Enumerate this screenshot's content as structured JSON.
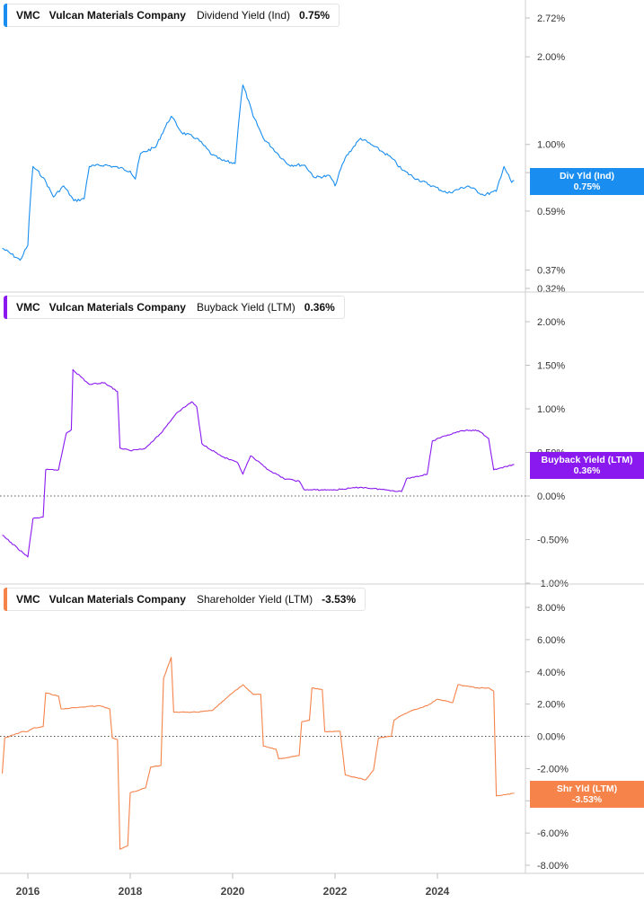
{
  "x_axis": {
    "labels": [
      "2016",
      "2018",
      "2020",
      "2022",
      "2024"
    ],
    "years": [
      2016,
      2018,
      2020,
      2022,
      2024
    ],
    "range": [
      2015.5,
      2025.5
    ]
  },
  "panels": [
    {
      "id": "dividend",
      "color": "#1a8ef0",
      "legend": {
        "ticker": "VMC",
        "company": "Vulcan Materials Company",
        "metric": "Dividend Yield (Ind)",
        "value": "0.75%"
      },
      "flag": {
        "label": "Div Yld (Ind)",
        "value": "0.75%"
      }
    },
    {
      "id": "buyback",
      "color": "#8a19f0",
      "legend": {
        "ticker": "VMC",
        "company": "Vulcan Materials Company",
        "metric": "Buyback Yield (LTM)",
        "value": "0.36%"
      },
      "flag": {
        "label": "Buyback Yield (LTM)",
        "value": "0.36%"
      }
    },
    {
      "id": "shareholder",
      "color": "#f5834a",
      "legend": {
        "ticker": "VMC",
        "company": "Vulcan Materials Company",
        "metric": "Shareholder Yield (LTM)",
        "value": "-3.53%"
      },
      "flag": {
        "label": "Shr Yld (LTM)",
        "value": "-3.53%"
      }
    }
  ],
  "chart_data": [
    {
      "type": "line",
      "scale": "log",
      "series": [
        {
          "name": "Dividend Yield (Ind)",
          "color": "#1a8ef0"
        }
      ],
      "yticks": [
        "2.72%",
        "2.00%",
        "1.00%",
        "0.80%",
        "0.59%",
        "0.37%",
        "0.32%"
      ],
      "ytick_values": [
        2.72,
        2.0,
        1.0,
        0.8,
        0.59,
        0.37,
        0.32
      ],
      "ylim": [
        0.32,
        2.72
      ],
      "points": [
        [
          2015.5,
          0.44
        ],
        [
          2015.85,
          0.4
        ],
        [
          2016.0,
          0.45
        ],
        [
          2016.1,
          0.84
        ],
        [
          2016.3,
          0.77
        ],
        [
          2016.5,
          0.66
        ],
        [
          2016.7,
          0.72
        ],
        [
          2016.9,
          0.64
        ],
        [
          2017.1,
          0.65
        ],
        [
          2017.2,
          0.84
        ],
        [
          2017.5,
          0.85
        ],
        [
          2017.8,
          0.83
        ],
        [
          2018.0,
          0.81
        ],
        [
          2018.1,
          0.76
        ],
        [
          2018.2,
          0.93
        ],
        [
          2018.5,
          0.98
        ],
        [
          2018.8,
          1.25
        ],
        [
          2019.0,
          1.1
        ],
        [
          2019.3,
          1.05
        ],
        [
          2019.6,
          0.92
        ],
        [
          2019.8,
          0.88
        ],
        [
          2020.05,
          0.86
        ],
        [
          2020.2,
          1.6
        ],
        [
          2020.4,
          1.25
        ],
        [
          2020.6,
          1.05
        ],
        [
          2020.9,
          0.92
        ],
        [
          2021.1,
          0.85
        ],
        [
          2021.4,
          0.85
        ],
        [
          2021.6,
          0.77
        ],
        [
          2021.9,
          0.78
        ],
        [
          2022.0,
          0.72
        ],
        [
          2022.2,
          0.9
        ],
        [
          2022.5,
          1.05
        ],
        [
          2022.7,
          1.0
        ],
        [
          2022.9,
          0.95
        ],
        [
          2023.1,
          0.9
        ],
        [
          2023.3,
          0.82
        ],
        [
          2023.6,
          0.76
        ],
        [
          2023.9,
          0.72
        ],
        [
          2024.2,
          0.68
        ],
        [
          2024.6,
          0.72
        ],
        [
          2024.9,
          0.67
        ],
        [
          2025.15,
          0.69
        ],
        [
          2025.3,
          0.84
        ],
        [
          2025.45,
          0.74
        ],
        [
          2025.5,
          0.75
        ]
      ]
    },
    {
      "type": "line",
      "series": [
        {
          "name": "Buyback Yield (LTM)",
          "color": "#8a19f0"
        }
      ],
      "yticks": [
        "2.00%",
        "1.50%",
        "1.00%",
        "0.50%",
        "0.00%",
        "-0.50%",
        "-1.00%"
      ],
      "ytick_values": [
        2.0,
        1.5,
        1.0,
        0.5,
        0.0,
        -0.5,
        -1.0
      ],
      "ylim": [
        -1.0,
        2.0
      ],
      "points": [
        [
          2015.5,
          -0.45
        ],
        [
          2015.9,
          -0.65
        ],
        [
          2016.0,
          -0.7
        ],
        [
          2016.1,
          -0.26
        ],
        [
          2016.3,
          -0.24
        ],
        [
          2016.35,
          0.3
        ],
        [
          2016.6,
          0.3
        ],
        [
          2016.75,
          0.72
        ],
        [
          2016.85,
          0.76
        ],
        [
          2016.88,
          1.45
        ],
        [
          2017.2,
          1.28
        ],
        [
          2017.5,
          1.3
        ],
        [
          2017.75,
          1.2
        ],
        [
          2017.8,
          0.55
        ],
        [
          2018.0,
          0.52
        ],
        [
          2018.3,
          0.55
        ],
        [
          2018.6,
          0.72
        ],
        [
          2018.9,
          0.95
        ],
        [
          2019.2,
          1.08
        ],
        [
          2019.3,
          1.02
        ],
        [
          2019.4,
          0.6
        ],
        [
          2019.8,
          0.45
        ],
        [
          2020.1,
          0.38
        ],
        [
          2020.2,
          0.25
        ],
        [
          2020.35,
          0.46
        ],
        [
          2020.7,
          0.3
        ],
        [
          2021.0,
          0.2
        ],
        [
          2021.3,
          0.17
        ],
        [
          2021.4,
          0.07
        ],
        [
          2022.0,
          0.07
        ],
        [
          2022.5,
          0.1
        ],
        [
          2023.0,
          0.07
        ],
        [
          2023.3,
          0.05
        ],
        [
          2023.4,
          0.2
        ],
        [
          2023.8,
          0.25
        ],
        [
          2023.9,
          0.63
        ],
        [
          2024.2,
          0.7
        ],
        [
          2024.5,
          0.75
        ],
        [
          2024.8,
          0.75
        ],
        [
          2025.0,
          0.66
        ],
        [
          2025.1,
          0.3
        ],
        [
          2025.5,
          0.36
        ]
      ]
    },
    {
      "type": "line",
      "series": [
        {
          "name": "Shareholder Yield (LTM)",
          "color": "#f5834a"
        }
      ],
      "yticks": [
        "8.00%",
        "6.00%",
        "4.00%",
        "2.00%",
        "0.00%",
        "-2.00%",
        "-4.00%",
        "-6.00%",
        "-8.00%"
      ],
      "ytick_values": [
        8,
        6,
        4,
        2,
        0,
        -2,
        -4,
        -6,
        -8
      ],
      "ylim": [
        -8.0,
        8.0
      ],
      "points": [
        [
          2015.5,
          -2.3
        ],
        [
          2015.55,
          -0.1
        ],
        [
          2015.9,
          0.3
        ],
        [
          2016.0,
          0.3
        ],
        [
          2016.1,
          0.5
        ],
        [
          2016.3,
          0.6
        ],
        [
          2016.35,
          2.7
        ],
        [
          2016.6,
          2.5
        ],
        [
          2016.65,
          1.7
        ],
        [
          2017.0,
          1.8
        ],
        [
          2017.4,
          1.9
        ],
        [
          2017.6,
          1.7
        ],
        [
          2017.65,
          -0.1
        ],
        [
          2017.75,
          -0.2
        ],
        [
          2017.8,
          -7.0
        ],
        [
          2017.95,
          -6.8
        ],
        [
          2018.0,
          -3.5
        ],
        [
          2018.3,
          -3.2
        ],
        [
          2018.4,
          -1.9
        ],
        [
          2018.6,
          -1.8
        ],
        [
          2018.65,
          3.6
        ],
        [
          2018.8,
          4.9
        ],
        [
          2018.85,
          1.5
        ],
        [
          2019.3,
          1.5
        ],
        [
          2019.6,
          1.6
        ],
        [
          2020.0,
          2.7
        ],
        [
          2020.2,
          3.2
        ],
        [
          2020.4,
          2.6
        ],
        [
          2020.55,
          2.6
        ],
        [
          2020.6,
          -0.6
        ],
        [
          2020.85,
          -0.8
        ],
        [
          2020.9,
          -1.4
        ],
        [
          2021.3,
          -1.2
        ],
        [
          2021.35,
          0.9
        ],
        [
          2021.5,
          1.0
        ],
        [
          2021.55,
          3.0
        ],
        [
          2021.75,
          2.9
        ],
        [
          2021.8,
          0.3
        ],
        [
          2022.1,
          0.3
        ],
        [
          2022.2,
          -2.4
        ],
        [
          2022.6,
          -2.7
        ],
        [
          2022.75,
          -2.1
        ],
        [
          2022.85,
          -0.1
        ],
        [
          2023.1,
          0.0
        ],
        [
          2023.15,
          1.0
        ],
        [
          2023.3,
          1.3
        ],
        [
          2023.5,
          1.6
        ],
        [
          2023.8,
          1.9
        ],
        [
          2024.0,
          2.3
        ],
        [
          2024.3,
          2.1
        ],
        [
          2024.4,
          3.2
        ],
        [
          2024.8,
          3.0
        ],
        [
          2025.0,
          3.0
        ],
        [
          2025.1,
          2.8
        ],
        [
          2025.15,
          -3.7
        ],
        [
          2025.5,
          -3.53
        ]
      ]
    }
  ]
}
